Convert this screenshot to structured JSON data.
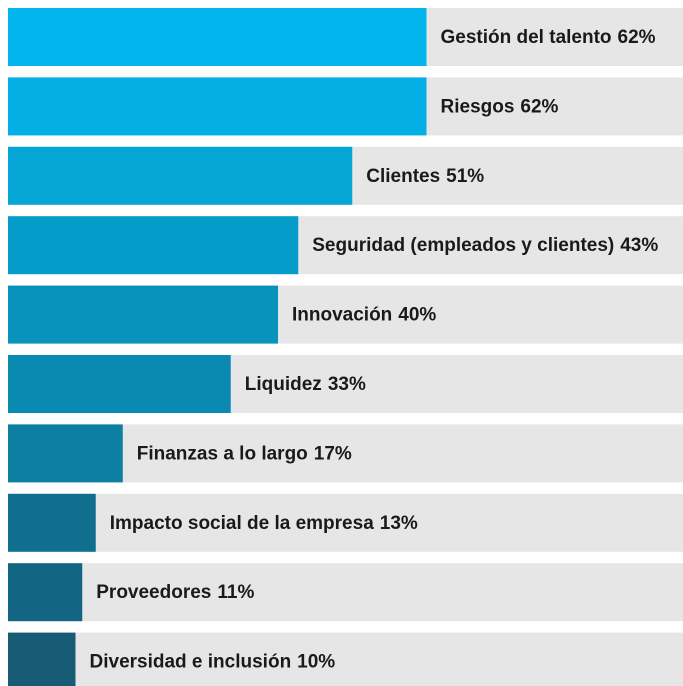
{
  "chart_data": {
    "type": "bar",
    "orientation": "horizontal",
    "categories": [
      "Gestión del talento",
      "Riesgos",
      "Clientes",
      "Seguridad (empleados y clientes)",
      "Innovación",
      "Liquidez",
      "Finanzas a lo largo",
      "Impacto social de la empresa",
      "Proveedores",
      "Diversidad e inclusión"
    ],
    "values": [
      62,
      62,
      51,
      43,
      40,
      33,
      17,
      13,
      11,
      10
    ],
    "value_labels": [
      "62%",
      "62%",
      "51%",
      "43%",
      "40%",
      "33%",
      "17%",
      "13%",
      "11%",
      "10%"
    ],
    "colors": [
      "#00b6ed",
      "#03afe4",
      "#05a5d6",
      "#069cca",
      "#0893bd",
      "#0a8ab0",
      "#0d7fa2",
      "#106f8e",
      "#136683",
      "#175c74"
    ],
    "track_color": "#e6e6e6",
    "xlim": [
      0,
      100
    ]
  }
}
